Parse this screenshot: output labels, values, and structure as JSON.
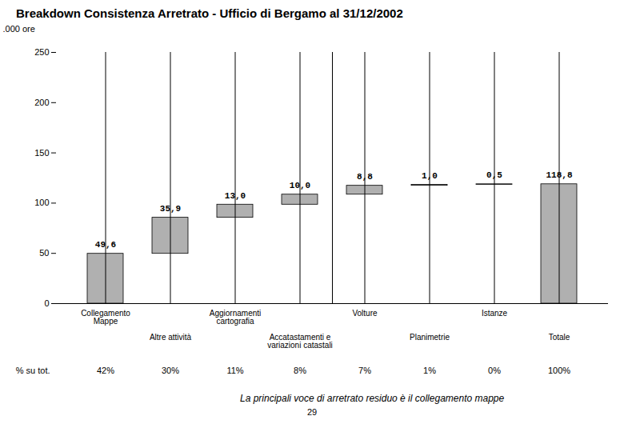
{
  "chart_data": {
    "type": "waterfall",
    "title": "Breakdown Consistenza Arretrato - Ufficio di Bergamo al 31/12/2002",
    "ylabel": ".000 ore",
    "categories": [
      "Collegamento\nMappe",
      "Altre attività",
      "Aggiornamenti\ncartografia",
      "Accatastamenti e\nvariazioni catastali",
      "Volture",
      "Planimetrie",
      "Istanze",
      "Totale"
    ],
    "series": [
      {
        "type": "waterfall",
        "color": "#b0b0b0",
        "values": [
          49.6,
          35.9,
          13.0,
          10.0,
          8.8,
          1.0,
          0.5,
          null
        ],
        "value_labels": [
          "49,6",
          "35,9",
          "13,0",
          "10,0",
          "8,8",
          "1,0",
          "0,5",
          null
        ]
      },
      {
        "type": "bar",
        "color": "#b0b0b0",
        "values": [
          null,
          null,
          null,
          null,
          null,
          null,
          null,
          118.8
        ],
        "value_labels": [
          null,
          null,
          null,
          null,
          null,
          null,
          null,
          "118,8"
        ]
      }
    ],
    "ylim": [
      0,
      250
    ],
    "yticks": [
      0,
      50,
      100,
      150,
      200,
      250
    ],
    "grid": false,
    "data_labels": true,
    "share_title": "% su tot.",
    "share_labels": [
      "42%",
      "30%",
      "11%",
      "8%",
      "7%",
      "1%",
      "0%",
      "100%"
    ],
    "annotation": "La principali voce di arretrato residuo è il collegamento mappe",
    "page_number": "29"
  }
}
